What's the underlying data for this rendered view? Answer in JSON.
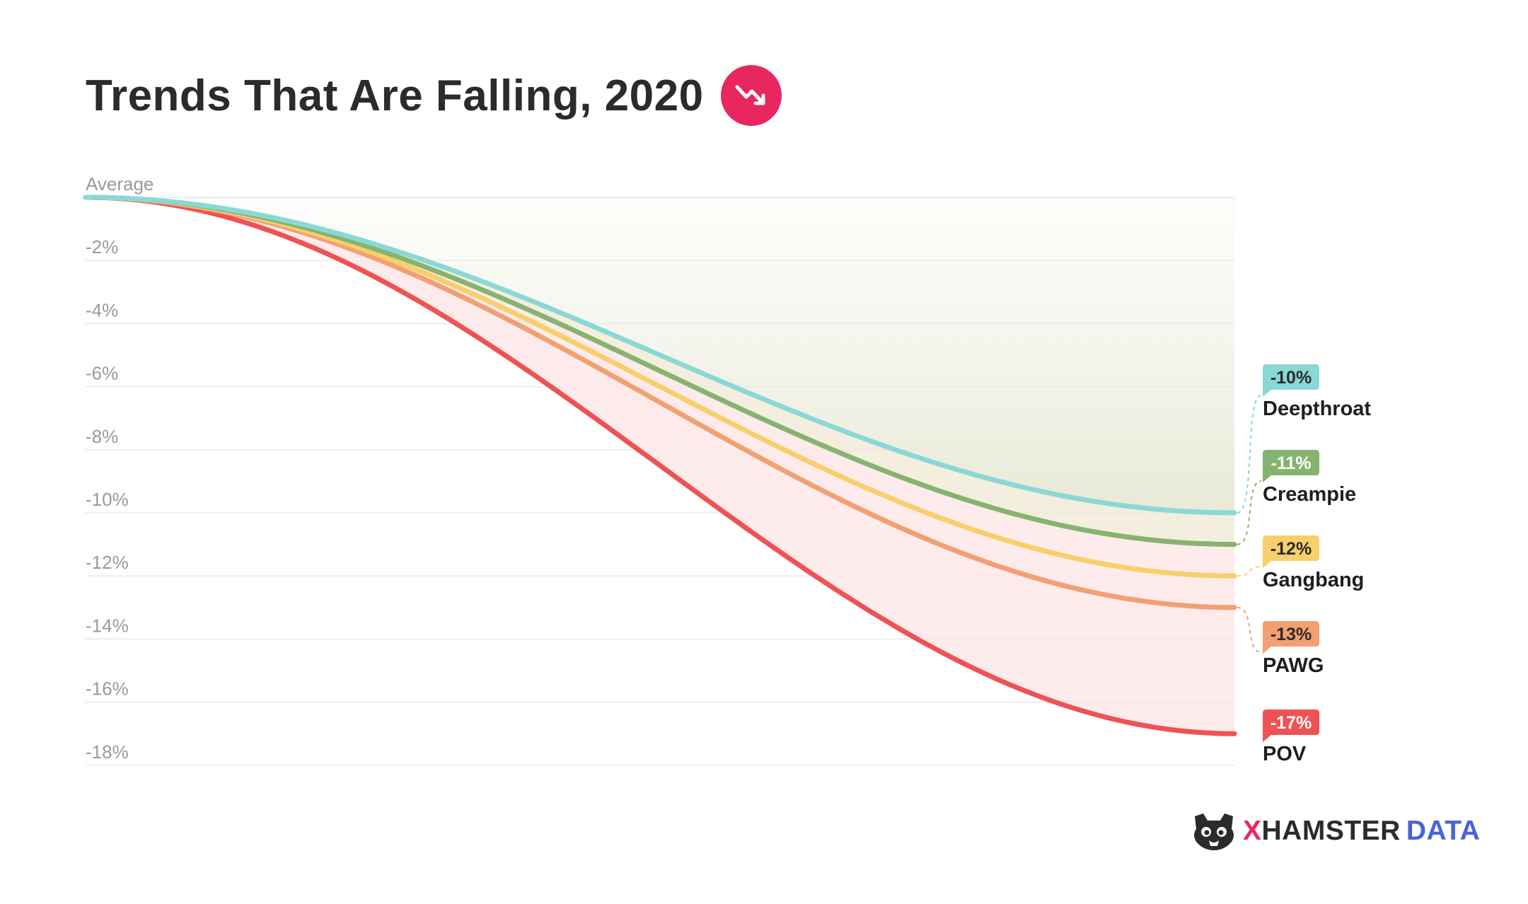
{
  "title": "Trends That Are Falling, 2020",
  "icons": {
    "title_badge": "trending-down-icon",
    "brand_logo": "hamster-logo-icon"
  },
  "colors": {
    "badge": "#e8275f",
    "brand_x": "#e8275f",
    "brand_data": "#4a63d6",
    "grid": "#e9e9e9",
    "tick_text": "#9a9a9a"
  },
  "brand": {
    "x": "X",
    "hamster": "HAMSTER",
    "data": "DATA"
  },
  "chart_data": {
    "type": "line",
    "title": "Trends That Are Falling, 2020",
    "xlabel": "",
    "ylabel": "",
    "ylim": [
      -18,
      0
    ],
    "y_ticks": [
      0,
      -2,
      -4,
      -6,
      -8,
      -10,
      -12,
      -14,
      -16,
      -18
    ],
    "y_tick_labels": [
      "Average",
      "-2%",
      "-4%",
      "-6%",
      "-8%",
      "-10%",
      "-12%",
      "-14%",
      "-16%",
      "-18%"
    ],
    "grid": true,
    "legend_placement": "right",
    "series": [
      {
        "name": "Deepthroat",
        "label": "-10%",
        "start": 0,
        "end": -10,
        "color": "#8ad8d6",
        "label_text_color": "#2b2b2b"
      },
      {
        "name": "Creampie",
        "label": "-11%",
        "start": 0,
        "end": -11,
        "color": "#86b36f",
        "label_text_color": "#ffffff"
      },
      {
        "name": "Gangbang",
        "label": "-12%",
        "start": 0,
        "end": -12,
        "color": "#f7cf6b",
        "label_text_color": "#2b2b2b"
      },
      {
        "name": "PAWG",
        "label": "-13%",
        "start": 0,
        "end": -13,
        "color": "#f2a072",
        "label_text_color": "#2b2b2b"
      },
      {
        "name": "POV",
        "label": "-17%",
        "start": 0,
        "end": -17,
        "color": "#ef5254",
        "label_text_color": "#ffffff"
      }
    ]
  }
}
